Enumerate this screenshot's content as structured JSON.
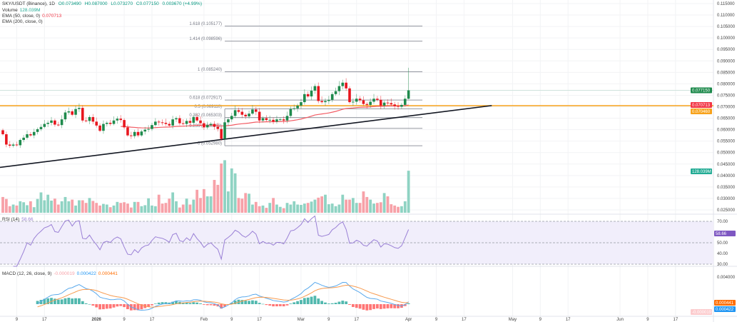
{
  "header": {
    "symbol": "SKY/USDT (Binance), 1D",
    "open": "O0.073490",
    "high": "H0.087000",
    "low": "L0.073270",
    "close": "C0.077150",
    "change": "0.003670 (+4.99%)",
    "volume_label": "Volume",
    "volume_value": "128.039M",
    "ema50_label": "EMA (50, close, 0)",
    "ema50_value": "0.070713",
    "ema200_label": "EMA (200, close, 0)"
  },
  "rsi_legend": {
    "label": "RSI (14)",
    "value": "58.66"
  },
  "macd_legend": {
    "label": "MACD (12, 26, close, 9)",
    "hist": "-0.000019",
    "macd": "0.000422",
    "signal": "0.000441"
  },
  "colors": {
    "up": "#1e8a4c",
    "down": "#e8161e",
    "vol_up": "#8fd3c3",
    "vol_down": "#f7a1a8",
    "ema50": "#f25c64",
    "level": "#f7a21b",
    "rsi": "#9a80d6",
    "macd": "#5aa9ec",
    "signal": "#f79b50"
  },
  "chart_data": {
    "type": "candlestick",
    "symbol": "SKY/USDT",
    "interval": "1D",
    "first_candle_date": "Dec 5",
    "last_candle_date": "Apr 1",
    "closes": [
      0.058,
      0.0535,
      0.053,
      0.0535,
      0.0532,
      0.0555,
      0.0565,
      0.058,
      0.0575,
      0.059,
      0.0602,
      0.0612,
      0.0625,
      0.063,
      0.064,
      0.0622,
      0.062,
      0.0645,
      0.0675,
      0.068,
      0.0665,
      0.069,
      0.0695,
      0.064,
      0.0638,
      0.0655,
      0.0635,
      0.0618,
      0.0595,
      0.0625,
      0.063,
      0.0625,
      0.064,
      0.0648,
      0.0642,
      0.061,
      0.0575,
      0.0572,
      0.059,
      0.0575,
      0.0592,
      0.06,
      0.0603,
      0.062,
      0.0635,
      0.0632,
      0.063,
      0.0625,
      0.0618,
      0.0645,
      0.065,
      0.0628,
      0.0625,
      0.0638,
      0.063,
      0.0655,
      0.064,
      0.0628,
      0.061,
      0.062,
      0.0625,
      0.0613,
      0.0603,
      0.056,
      0.0632,
      0.0645,
      0.066,
      0.0685,
      0.0678,
      0.0665,
      0.0658,
      0.067,
      0.0688,
      0.0678,
      0.064,
      0.065,
      0.0642,
      0.0643,
      0.0635,
      0.0645,
      0.0645,
      0.064,
      0.066,
      0.069,
      0.0693,
      0.0705,
      0.072,
      0.0755,
      0.0745,
      0.077,
      0.079,
      0.0725,
      0.072,
      0.0725,
      0.073,
      0.0755,
      0.0768,
      0.079,
      0.0805,
      0.078,
      0.072,
      0.0722,
      0.0735,
      0.0728,
      0.0712,
      0.0708,
      0.0722,
      0.0735,
      0.073,
      0.0705,
      0.0718,
      0.0716,
      0.071,
      0.0703,
      0.07,
      0.0708,
      0.07349,
      0.07715
    ],
    "last_candle": {
      "open": 0.07349,
      "high": 0.087,
      "low": 0.07327,
      "close": 0.07715
    },
    "volumes_millions": [
      48,
      42,
      20,
      25,
      22,
      35,
      32,
      23,
      35,
      17,
      42,
      62,
      38,
      55,
      37,
      43,
      25,
      35,
      48,
      35,
      40,
      22,
      38,
      38,
      30,
      45,
      36,
      30,
      22,
      27,
      25,
      17,
      22,
      33,
      30,
      32,
      28,
      16,
      33,
      33,
      20,
      23,
      44,
      22,
      20,
      55,
      28,
      30,
      43,
      62,
      35,
      16,
      25,
      43,
      25,
      40,
      70,
      45,
      72,
      50,
      50,
      100,
      85,
      150,
      160,
      65,
      135,
      120,
      45,
      43,
      60,
      58,
      25,
      33,
      20,
      22,
      15,
      30,
      45,
      25,
      18,
      14,
      30,
      25,
      35,
      25,
      24,
      28,
      30,
      34,
      40,
      46,
      50,
      55,
      26,
      28,
      20,
      25,
      55,
      40,
      40,
      45,
      30,
      30,
      65,
      48,
      40,
      28,
      30,
      32,
      60,
      50,
      26,
      22,
      18,
      20,
      35,
      128
    ],
    "price_axis": {
      "ticks": [
        "0.115000",
        "0.110000",
        "0.105000",
        "0.100000",
        "0.095000",
        "0.090000",
        "0.085000",
        "0.080000",
        "0.075000",
        "0.070000",
        "0.065000",
        "0.060000",
        "0.055000",
        "0.050000",
        "0.045000",
        "0.040000",
        "0.035000",
        "0.030000",
        "0.025000"
      ],
      "range": [
        0.025,
        0.115
      ]
    },
    "price_tags": {
      "last": "0.077150",
      "ema50": "0.070713",
      "level": "0.070460",
      "volume": "128.039M"
    },
    "horizontal_level": 0.07046,
    "trendline": {
      "from": {
        "day": -1,
        "price": 0.0435
      },
      "to": {
        "day": 141,
        "price": 0.0705
      }
    },
    "fib": {
      "start_day": 64,
      "end_day": 121,
      "levels": [
        {
          "ratio": 1.618,
          "label": "1.618 (0.105177)",
          "price": 0.105177
        },
        {
          "ratio": 1.414,
          "label": "1.414 (0.098596)",
          "price": 0.098596
        },
        {
          "ratio": 1,
          "label": "1 (0.085240)",
          "price": 0.08524
        },
        {
          "ratio": 0.618,
          "label": "0.618 (0.072917)",
          "price": 0.072917
        },
        {
          "ratio": 0.5,
          "label": "0.5 (0.069110)",
          "price": 0.06911
        },
        {
          "ratio": 0.382,
          "label": "0.382 (0.065303)",
          "price": 0.065303
        },
        {
          "ratio": 0.236,
          "label": "0.236 (0.060593)",
          "price": 0.060593
        },
        {
          "ratio": 0,
          "label": "0 (0.052980)",
          "price": 0.05298
        }
      ]
    },
    "rsi": {
      "ticks": [
        "70.00",
        "50.00",
        "40.00",
        "30.00"
      ],
      "range": [
        30,
        70
      ],
      "current": "58.66"
    },
    "macd": {
      "ticks": [
        "0.004000"
      ],
      "tags": {
        "signal": "0.000441",
        "macd": "0.000422",
        "hist": "-0.000019"
      }
    },
    "x_ticks": [
      {
        "label": "9",
        "day": 4
      },
      {
        "label": "17",
        "day": 12
      },
      {
        "label": "2026",
        "day": 27
      },
      {
        "label": "9",
        "day": 35
      },
      {
        "label": "17",
        "day": 43
      },
      {
        "label": "Feb",
        "day": 58
      },
      {
        "label": "9",
        "day": 66
      },
      {
        "label": "17",
        "day": 74
      },
      {
        "label": "Mar",
        "day": 86
      },
      {
        "label": "9",
        "day": 94
      },
      {
        "label": "17",
        "day": 102
      },
      {
        "label": "Apr",
        "day": 117
      },
      {
        "label": "9",
        "day": 125
      },
      {
        "label": "17",
        "day": 133
      },
      {
        "label": "May",
        "day": 147
      },
      {
        "label": "9",
        "day": 155
      },
      {
        "label": "17",
        "day": 163
      },
      {
        "label": "Jun",
        "day": 178
      },
      {
        "label": "9",
        "day": 186
      },
      {
        "label": "17",
        "day": 194
      }
    ]
  }
}
